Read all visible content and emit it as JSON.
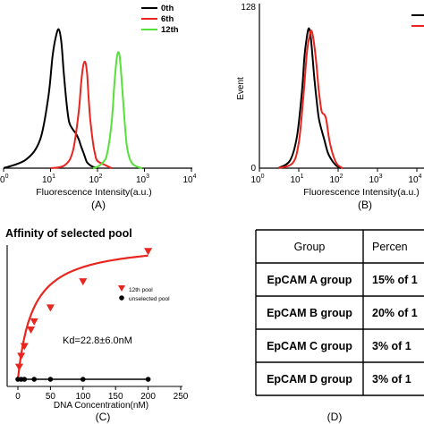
{
  "panelA": {
    "label": "(A)",
    "xlabel": "Fluorescence Intensity(a.u.)",
    "x_ticks": [
      {
        "base": "10",
        "exp": "0",
        "v": 0
      },
      {
        "base": "10",
        "exp": "1",
        "v": 1
      },
      {
        "base": "10",
        "exp": "2",
        "v": 2
      },
      {
        "base": "10",
        "exp": "3",
        "v": 3
      },
      {
        "base": "10",
        "exp": "4",
        "v": 4
      }
    ],
    "legend": [
      {
        "name": "0th",
        "color": "#000000"
      },
      {
        "name": "6th",
        "color": "#e8251e"
      },
      {
        "name": "12th",
        "color": "#57e03a"
      }
    ]
  },
  "panelB": {
    "label": "(B)",
    "xlabel": "Fluorescence Intensity(a.u.)",
    "ylabel": "Event",
    "y_top": "128",
    "y_zero": "0",
    "x_ticks": [
      {
        "base": "10",
        "exp": "0",
        "v": 0
      },
      {
        "base": "10",
        "exp": "1",
        "v": 1
      },
      {
        "base": "10",
        "exp": "2",
        "v": 2
      },
      {
        "base": "10",
        "exp": "3",
        "v": 3
      },
      {
        "base": "10",
        "exp": "4",
        "v": 4
      }
    ],
    "legend_colors": [
      "#000000",
      "#e8251e"
    ]
  },
  "panelC": {
    "label": "(C)",
    "title": "Affinity of selected pool",
    "xlabel": "DNA Concentration(nM)",
    "annotation": "Kd=22.8±6.0nM",
    "legend": [
      {
        "name": "12th pool",
        "color": "#e8251e"
      },
      {
        "name": "unselected pool",
        "color": "#000000"
      }
    ],
    "x_ticks": [
      "0",
      "50",
      "100",
      "150",
      "200",
      "250"
    ]
  },
  "panelD": {
    "label": "(D)",
    "headers": [
      "Group",
      "Percen"
    ],
    "rows": [
      [
        "EpCAM A group",
        "15% of 1"
      ],
      [
        "EpCAM B group",
        "20% of 1"
      ],
      [
        "EpCAM C group",
        "3% of 1"
      ],
      [
        "EpCAM D group",
        "3% of 1"
      ]
    ]
  },
  "chart_data": [
    {
      "type": "line",
      "title": "",
      "xlabel": "Fluorescence Intensity(a.u.)",
      "ylabel": "",
      "x_scale": "log",
      "xlim": [
        1,
        10000
      ],
      "ylim": [
        0,
        100
      ],
      "series": [
        {
          "name": "0th",
          "color": "#000000",
          "x": [
            1,
            3,
            6,
            9,
            11,
            13,
            15,
            17,
            19,
            22,
            25,
            30,
            35,
            40,
            45,
            50,
            55,
            60,
            70,
            80,
            100
          ],
          "y": [
            0,
            6,
            20,
            50,
            78,
            92,
            97,
            88,
            68,
            45,
            32,
            27,
            24,
            20,
            15,
            11,
            7,
            4,
            2,
            1,
            0
          ]
        },
        {
          "name": "6th",
          "color": "#e8251e",
          "x": [
            10,
            20,
            30,
            40,
            45,
            50,
            55,
            60,
            65,
            70,
            80,
            90,
            100,
            150,
            200
          ],
          "y": [
            0,
            2,
            12,
            40,
            60,
            72,
            74,
            66,
            48,
            34,
            18,
            9,
            5,
            2,
            0
          ]
        },
        {
          "name": "12th",
          "color": "#57e03a",
          "x": [
            80,
            100,
            130,
            160,
            200,
            230,
            260,
            290,
            320,
            380,
            420,
            480,
            560,
            700,
            900
          ],
          "y": [
            0,
            1,
            4,
            10,
            32,
            60,
            78,
            80,
            66,
            32,
            16,
            7,
            3,
            1,
            0
          ]
        }
      ]
    },
    {
      "type": "line",
      "title": "",
      "xlabel": "Fluorescence Intensity(a.u.)",
      "ylabel": "Event",
      "x_scale": "log",
      "xlim": [
        1,
        10000
      ],
      "ylim": [
        0,
        128
      ],
      "series": [
        {
          "color": "#000000",
          "x": [
            3,
            6,
            9,
            12,
            14,
            16,
            18,
            20,
            22,
            25,
            28,
            32,
            38,
            45,
            55,
            70,
            90,
            120
          ],
          "y": [
            0,
            6,
            25,
            60,
            88,
            103,
            110,
            104,
            90,
            70,
            55,
            40,
            30,
            22,
            12,
            6,
            2,
            0
          ]
        },
        {
          "color": "#e8251e",
          "x": [
            3,
            7,
            10,
            13,
            16,
            19,
            21,
            24,
            28,
            32,
            38,
            45,
            50,
            60,
            75,
            95,
            130
          ],
          "y": [
            0,
            4,
            20,
            55,
            90,
            105,
            108,
            100,
            82,
            62,
            45,
            42,
            38,
            22,
            10,
            3,
            0
          ]
        }
      ]
    },
    {
      "type": "scatter",
      "title": "Affinity of selected pool",
      "xlabel": "DNA Concentration(nM)",
      "ylabel": "",
      "xlim": [
        0,
        250
      ],
      "x_ticks": [
        0,
        50,
        100,
        150,
        200,
        250
      ],
      "ylim": [
        0,
        1
      ],
      "series": [
        {
          "name": "12th pool",
          "color": "#e8251e",
          "marker": "triangle-down",
          "x": [
            2,
            5,
            10,
            20,
            25,
            50,
            100,
            200
          ],
          "y": [
            0.09,
            0.17,
            0.24,
            0.36,
            0.42,
            0.52,
            0.71,
            0.93
          ]
        },
        {
          "name": "unselected pool",
          "color": "#000000",
          "marker": "circle",
          "x": [
            0,
            5,
            10,
            25,
            50,
            100,
            200
          ],
          "y": [
            0,
            0,
            0,
            0,
            0,
            0,
            0
          ]
        }
      ],
      "fit": {
        "series": "12th pool",
        "kd": 22.8,
        "bmax": 1.0
      }
    },
    {
      "type": "table",
      "headers": [
        "Group",
        "Percen"
      ],
      "rows": [
        [
          "EpCAM A group",
          "15% of 1"
        ],
        [
          "EpCAM B group",
          "20% of 1"
        ],
        [
          "EpCAM C group",
          "3% of 1"
        ],
        [
          "EpCAM D group",
          "3% of 1"
        ]
      ]
    }
  ]
}
